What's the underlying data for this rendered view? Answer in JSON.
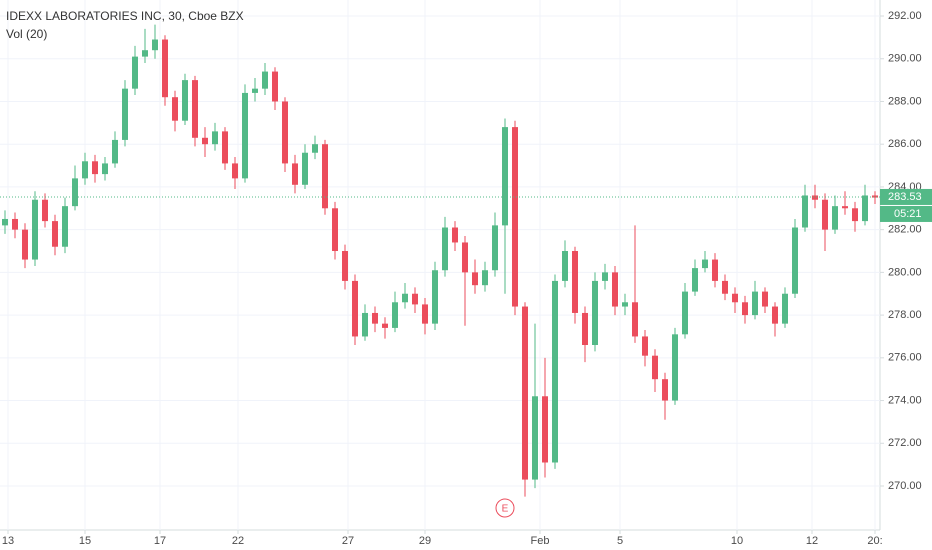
{
  "chart_data": {
    "type": "candlestick",
    "title": "IDEXX LABORATORIES INC, 30, Cboe BZX",
    "subtitle": "Vol (20)",
    "up_color": "#53b987",
    "down_color": "#eb4d5c",
    "ylim": [
      267.94,
      292.75
    ],
    "yticks": [
      {
        "value": 270,
        "label": "270.00"
      },
      {
        "value": 272,
        "label": "272.00"
      },
      {
        "value": 274,
        "label": "274.00"
      },
      {
        "value": 276,
        "label": "276.00"
      },
      {
        "value": 278,
        "label": "278.00"
      },
      {
        "value": 280,
        "label": "280.00"
      },
      {
        "value": 282,
        "label": "282.00"
      },
      {
        "value": 284,
        "label": "284.00"
      },
      {
        "value": 286,
        "label": "286.00"
      },
      {
        "value": 288,
        "label": "288.00"
      },
      {
        "value": 290,
        "label": "290.00"
      },
      {
        "value": 292,
        "label": "292.00"
      }
    ],
    "xlim": [
      0,
      88
    ],
    "xticks": [
      {
        "value": 0.8,
        "label": "13"
      },
      {
        "value": 8.5,
        "label": "15"
      },
      {
        "value": 16,
        "label": "17"
      },
      {
        "value": 23.8,
        "label": "22"
      },
      {
        "value": 34.8,
        "label": "27"
      },
      {
        "value": 42.5,
        "label": "29"
      },
      {
        "value": 54,
        "label": "Feb"
      },
      {
        "value": 62,
        "label": "5"
      },
      {
        "value": 73.7,
        "label": "10"
      },
      {
        "value": 81.2,
        "label": "12"
      },
      {
        "value": 87.5,
        "label": "20:"
      }
    ],
    "grid": true,
    "open": [
      282.2,
      282.5,
      282.0,
      280.6,
      283.4,
      282.4,
      281.2,
      283.1,
      284.4,
      285.2,
      284.6,
      285.1,
      286.2,
      288.6,
      290.1,
      290.4,
      290.9,
      288.2,
      287.1,
      289.0,
      286.3,
      286.0,
      286.6,
      285.1,
      284.4,
      288.4,
      288.6,
      289.4,
      288.0,
      285.1,
      284.1,
      285.6,
      286.0,
      283.0,
      281.0,
      279.6,
      277.0,
      278.1,
      277.6,
      277.4,
      278.6,
      279.0,
      278.5,
      277.6,
      280.1,
      282.1,
      281.4,
      280.0,
      279.4,
      280.1,
      282.2,
      286.8,
      278.4,
      270.3,
      274.2,
      271.1,
      279.6,
      281.0,
      278.1,
      276.6,
      279.6,
      280.0,
      278.4,
      278.6,
      277.0,
      276.1,
      275.0,
      274.0,
      277.1,
      279.1,
      280.2,
      280.6,
      279.6,
      279.0,
      278.6,
      278.0,
      279.1,
      278.4,
      277.6,
      279.0,
      282.1,
      283.6,
      283.4,
      282.0,
      283.1,
      283.0,
      282.4,
      283.6
    ],
    "high": [
      282.9,
      282.8,
      282.3,
      283.8,
      283.7,
      282.7,
      283.5,
      285.0,
      285.6,
      285.5,
      285.4,
      286.6,
      289.0,
      290.6,
      291.4,
      291.6,
      291.1,
      288.5,
      289.3,
      289.2,
      286.8,
      287.0,
      286.8,
      285.4,
      288.8,
      289.1,
      289.8,
      289.6,
      288.2,
      285.5,
      286.0,
      286.4,
      286.2,
      283.3,
      281.3,
      279.9,
      278.5,
      278.4,
      277.9,
      279.1,
      279.5,
      279.3,
      278.8,
      280.5,
      282.6,
      282.4,
      281.7,
      280.6,
      280.5,
      282.8,
      287.2,
      287.1,
      278.6,
      277.6,
      276.0,
      279.9,
      281.5,
      281.2,
      278.4,
      280.0,
      280.4,
      280.3,
      279.0,
      282.2,
      277.3,
      276.4,
      275.3,
      277.4,
      279.5,
      280.6,
      281.0,
      280.9,
      279.9,
      279.3,
      278.9,
      279.6,
      279.3,
      278.6,
      279.3,
      282.5,
      284.1,
      284.1,
      283.7,
      283.6,
      283.8,
      283.3,
      284.1,
      283.8
    ],
    "low": [
      281.8,
      281.6,
      280.2,
      280.3,
      282.1,
      280.8,
      280.9,
      282.9,
      284.1,
      284.2,
      284.3,
      284.9,
      285.9,
      288.3,
      289.8,
      290.0,
      287.8,
      286.6,
      286.9,
      285.9,
      285.4,
      285.7,
      284.8,
      283.9,
      284.2,
      288.0,
      288.3,
      287.6,
      284.7,
      283.7,
      283.9,
      285.3,
      282.7,
      280.6,
      279.2,
      276.6,
      276.8,
      277.2,
      276.9,
      277.2,
      278.3,
      278.1,
      277.1,
      277.3,
      279.8,
      281.0,
      277.5,
      279.0,
      279.1,
      279.8,
      279.0,
      278.0,
      269.5,
      269.9,
      270.4,
      270.8,
      279.3,
      277.6,
      275.8,
      276.3,
      279.2,
      278.0,
      278.0,
      276.7,
      275.6,
      274.4,
      273.1,
      273.8,
      276.9,
      278.9,
      280.0,
      279.3,
      278.7,
      278.1,
      277.6,
      277.8,
      278.1,
      277.0,
      277.4,
      278.8,
      281.9,
      283.0,
      281.0,
      281.8,
      282.7,
      281.9,
      282.2,
      283.2
    ],
    "close": [
      282.5,
      282.0,
      280.6,
      283.4,
      282.4,
      281.2,
      283.1,
      284.4,
      285.2,
      284.6,
      285.1,
      286.2,
      288.6,
      290.1,
      290.4,
      290.9,
      288.2,
      287.1,
      289.0,
      286.3,
      286.0,
      286.6,
      285.1,
      284.4,
      288.4,
      288.6,
      289.4,
      288.0,
      285.1,
      284.1,
      285.6,
      286.0,
      283.0,
      281.0,
      279.6,
      277.0,
      278.1,
      277.6,
      277.4,
      278.6,
      279.0,
      278.5,
      277.6,
      280.1,
      282.1,
      281.4,
      280.0,
      279.4,
      280.1,
      282.2,
      286.8,
      278.4,
      270.3,
      274.2,
      271.1,
      279.6,
      281.0,
      278.1,
      276.6,
      279.6,
      280.0,
      278.4,
      278.6,
      277.0,
      276.1,
      275.0,
      274.0,
      277.1,
      279.1,
      280.2,
      280.6,
      279.6,
      279.0,
      278.6,
      278.0,
      279.1,
      278.4,
      277.6,
      279.0,
      282.1,
      283.6,
      283.4,
      282.0,
      283.1,
      283.0,
      282.4,
      283.6,
      283.5
    ],
    "last_price": 283.53,
    "countdown": "05:21",
    "earnings_marker": {
      "label": "E",
      "x": 50.5
    }
  }
}
